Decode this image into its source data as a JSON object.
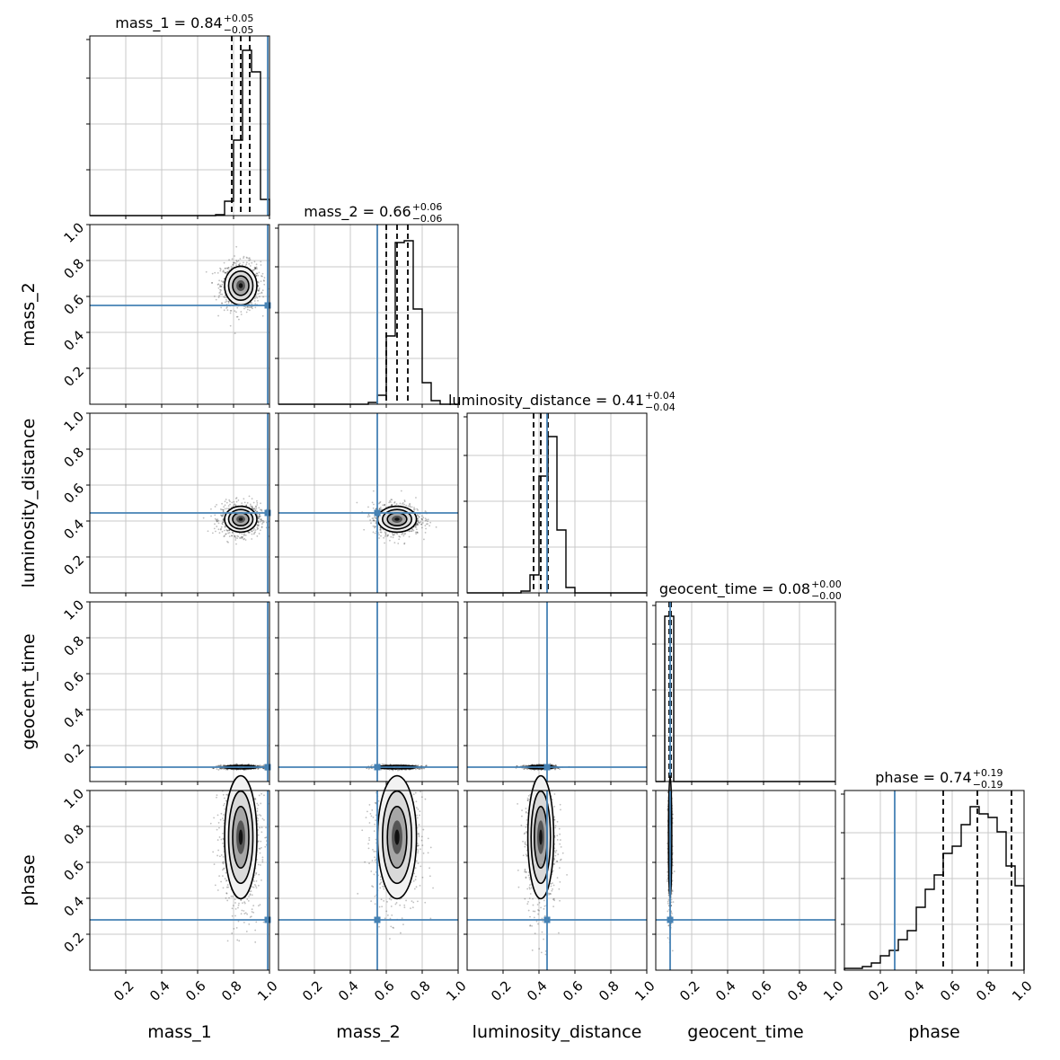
{
  "chart_data": {
    "type": "corner",
    "parameters": [
      {
        "name": "mass_1",
        "label": "mass_1",
        "median": "0.84",
        "plus": "+0.05",
        "minus": "−0.05",
        "quantiles": [
          0.79,
          0.84,
          0.89
        ],
        "truth": 0.99
      },
      {
        "name": "mass_2",
        "label": "mass_2",
        "median": "0.66",
        "plus": "+0.06",
        "minus": "−0.06",
        "quantiles": [
          0.6,
          0.66,
          0.72
        ],
        "truth": 0.55
      },
      {
        "name": "luminosity_distance",
        "label": "luminosity_distance",
        "median": "0.41",
        "plus": "+0.04",
        "minus": "−0.04",
        "quantiles": [
          0.37,
          0.41,
          0.45
        ],
        "truth": 0.445
      },
      {
        "name": "geocent_time",
        "label": "geocent_time",
        "median": "0.08",
        "plus": "+0.00",
        "minus": "−0.00",
        "quantiles": [
          0.075,
          0.08,
          0.085
        ],
        "truth": 0.08
      },
      {
        "name": "phase",
        "label": "phase",
        "median": "0.74",
        "plus": "+0.19",
        "minus": "−0.19",
        "quantiles": [
          0.55,
          0.74,
          0.93
        ],
        "truth": 0.28
      }
    ],
    "axis_range": [
      0,
      1
    ],
    "x_ticks": [
      "0.2",
      "0.4",
      "0.6",
      "0.8",
      "1.0"
    ],
    "y_ticks": [
      "0.2",
      "0.4",
      "0.6",
      "0.8",
      "1.0"
    ],
    "histograms": {
      "bin_width": 0.05,
      "bin_starts": [
        0,
        0.05,
        0.1,
        0.15,
        0.2,
        0.25,
        0.3,
        0.35,
        0.4,
        0.45,
        0.5,
        0.55,
        0.6,
        0.65,
        0.7,
        0.75,
        0.8,
        0.85,
        0.9,
        0.95
      ],
      "mass_1": [
        0,
        0,
        0,
        0,
        0,
        0,
        0,
        0,
        0,
        0,
        0,
        0,
        0,
        0,
        0.005,
        0.08,
        0.42,
        0.92,
        0.8,
        0.09
      ],
      "mass_2": [
        0,
        0,
        0,
        0,
        0,
        0,
        0,
        0,
        0,
        0,
        0.01,
        0.05,
        0.38,
        0.9,
        0.91,
        0.53,
        0.12,
        0.02,
        0,
        0
      ],
      "luminosity_distance": [
        0,
        0,
        0,
        0,
        0,
        0,
        0.01,
        0.1,
        0.65,
        0.87,
        0.35,
        0.03,
        0,
        0,
        0,
        0,
        0,
        0,
        0,
        0
      ],
      "geocent_time": [
        0,
        0.92,
        0,
        0,
        0,
        0,
        0,
        0,
        0,
        0,
        0,
        0,
        0,
        0,
        0,
        0,
        0,
        0,
        0,
        0
      ],
      "phase": [
        0.01,
        0.01,
        0.02,
        0.04,
        0.08,
        0.11,
        0.17,
        0.22,
        0.35,
        0.45,
        0.53,
        0.65,
        0.69,
        0.81,
        0.91,
        0.87,
        0.85,
        0.77,
        0.58,
        0.47
      ]
    },
    "colors": {
      "truth": "#4682b4",
      "hist": "#000000",
      "grid": "#c8c8c8",
      "quantile": "#000000"
    }
  }
}
